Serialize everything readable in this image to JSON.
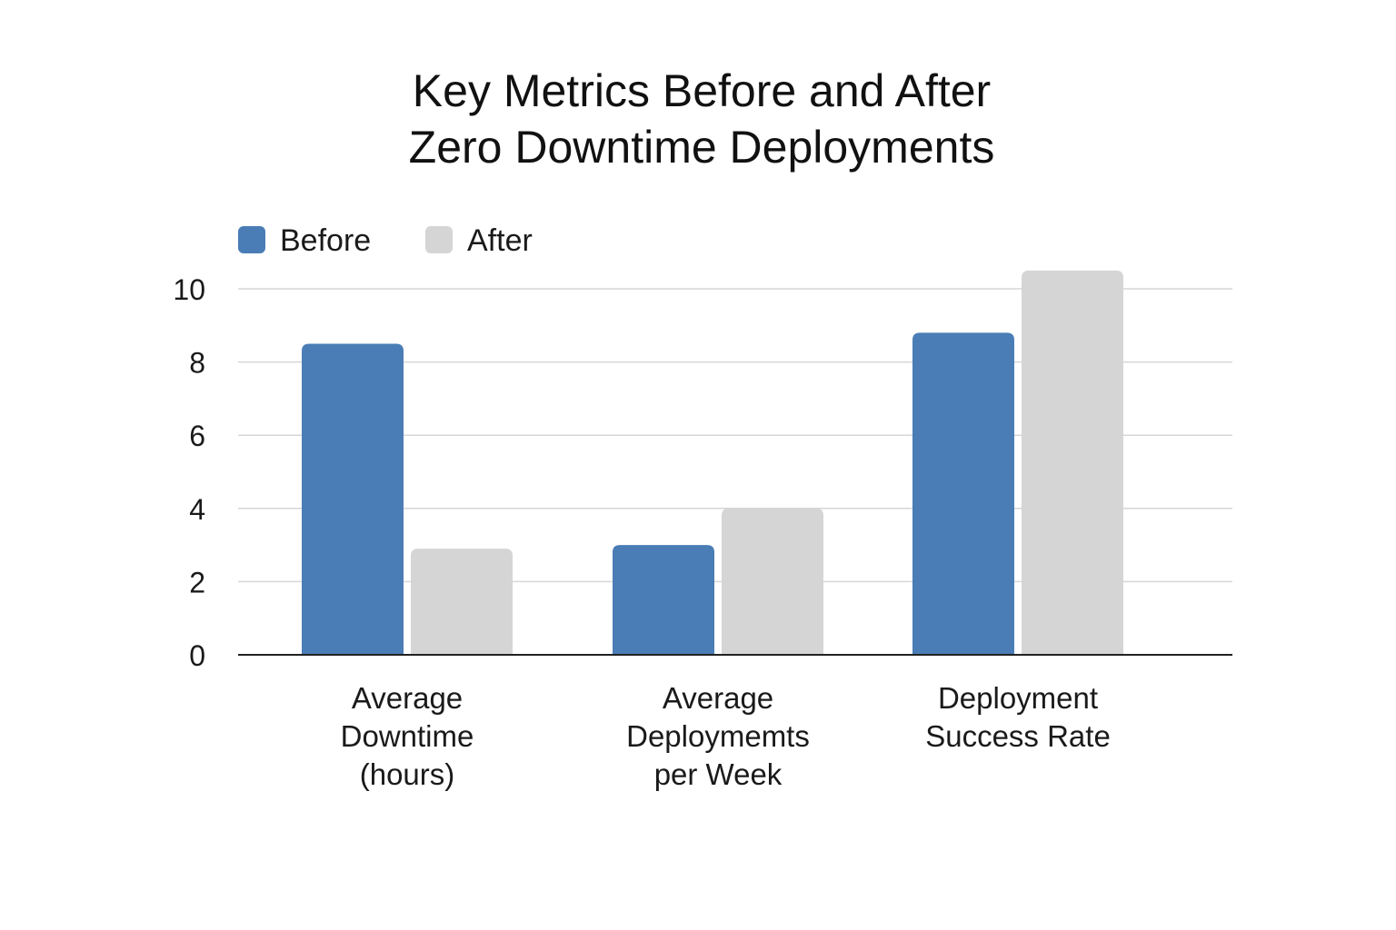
{
  "chart_data": {
    "type": "bar",
    "title": [
      "Key Metrics Before and After",
      "Zero Downtime Deployments"
    ],
    "categories": [
      [
        "Average",
        "Downtime",
        "(hours)"
      ],
      [
        "Average",
        "Deploymemts",
        "per Week"
      ],
      [
        "Deployment",
        "Success Rate"
      ]
    ],
    "series": [
      {
        "name": "Before",
        "color": "#4a7db5",
        "values": [
          8.5,
          3,
          8.8
        ]
      },
      {
        "name": "After",
        "color": "#d5d5d5",
        "values": [
          2.9,
          4,
          10.5
        ]
      }
    ],
    "y_ticks": [
      "0",
      "2",
      "4",
      "6",
      "8",
      "10"
    ],
    "ylim": [
      0,
      10
    ],
    "xlabel": "",
    "ylabel": "",
    "grid": true,
    "legend_position": "top-left"
  }
}
